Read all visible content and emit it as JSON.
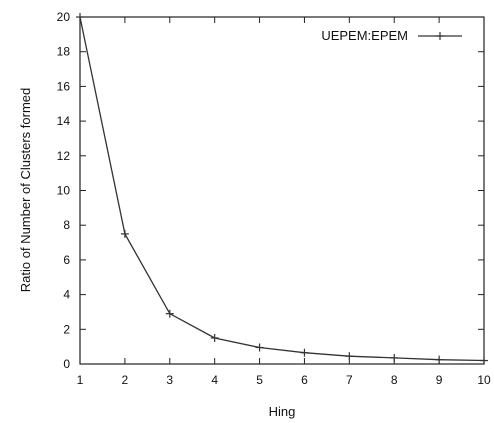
{
  "chart_data": {
    "type": "line",
    "title": "",
    "xlabel": "Hing",
    "ylabel": "Ratio of Number of Clusters formed",
    "xlim": [
      1,
      10
    ],
    "ylim": [
      0,
      20
    ],
    "x_ticks": [
      "1",
      "2",
      "3",
      "4",
      "5",
      "6",
      "7",
      "8",
      "9",
      "10"
    ],
    "y_ticks": [
      "0",
      "2",
      "4",
      "6",
      "8",
      "10",
      "12",
      "14",
      "16",
      "18",
      "20"
    ],
    "grid": false,
    "legend_position": "top-right",
    "series": [
      {
        "name": "UEPEM:EPEM",
        "x": [
          1,
          2,
          3,
          4,
          5,
          6,
          7,
          8,
          9,
          10
        ],
        "y": [
          20,
          7.5,
          2.9,
          1.5,
          0.95,
          0.65,
          0.45,
          0.35,
          0.25,
          0.2
        ],
        "color": "#333333",
        "marker": "+"
      }
    ]
  }
}
